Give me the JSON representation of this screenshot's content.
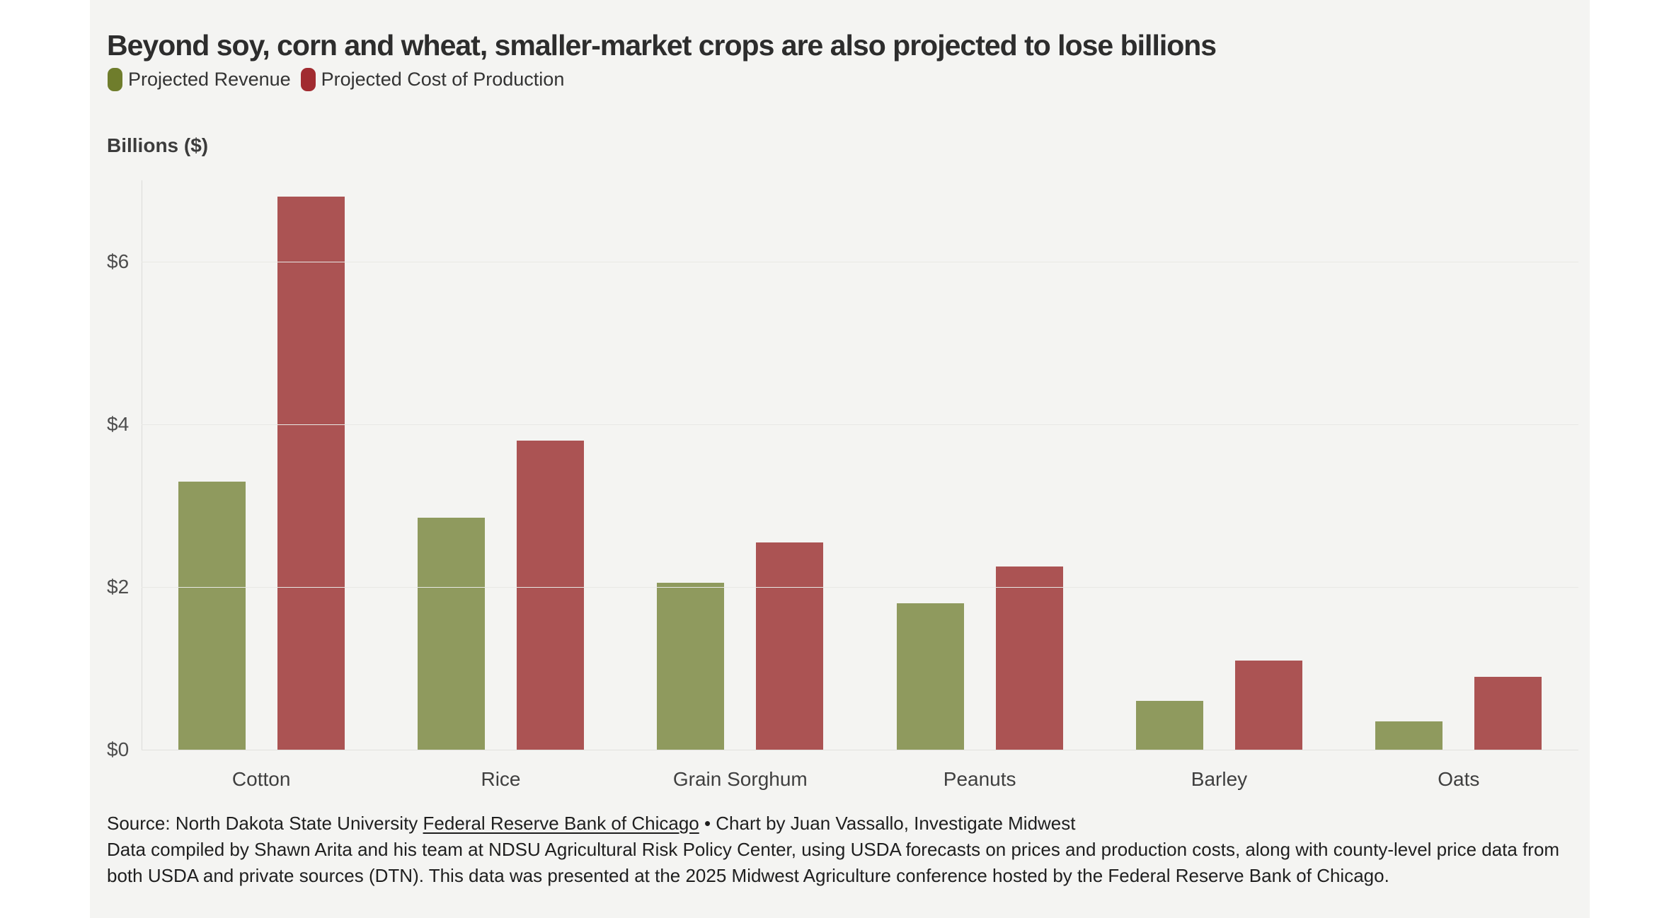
{
  "header": {
    "title": "Beyond soy, corn and wheat, smaller-market crops are also projected to lose billions"
  },
  "legend": {
    "revenue_label": "Projected Revenue",
    "cost_label": "Projected Cost of Production"
  },
  "y_axis_title": "Billions ($)",
  "chart_data": {
    "type": "bar",
    "categories": [
      "Cotton",
      "Rice",
      "Grain Sorghum",
      "Peanuts",
      "Barley",
      "Oats"
    ],
    "series": [
      {
        "name": "Projected Revenue",
        "color": "#8F9A5E",
        "values": [
          3.3,
          2.85,
          2.05,
          1.8,
          0.6,
          0.35
        ]
      },
      {
        "name": "Projected Cost of Production",
        "color": "#AB5353",
        "values": [
          6.8,
          3.8,
          2.55,
          2.25,
          1.1,
          0.9
        ]
      }
    ],
    "title": "Beyond soy, corn and wheat, smaller-market crops are also projected to lose billions",
    "xlabel": "",
    "ylabel": "Billions ($)",
    "ylim": [
      0,
      7
    ],
    "yticks": [
      {
        "value": 0,
        "label": "$0"
      },
      {
        "value": 2,
        "label": "$2"
      },
      {
        "value": 4,
        "label": "$4"
      },
      {
        "value": 6,
        "label": "$6"
      }
    ],
    "grid": true,
    "legend_position": "top"
  },
  "colors": {
    "page_bg": "#ffffff",
    "card_bg": "#f4f4f2",
    "bar_revenue": "#8F9A5E",
    "bar_cost": "#AB5353",
    "legend_revenue_swatch": "#6F7D2C",
    "legend_cost_swatch": "#A12B30"
  },
  "footer": {
    "source_prefix": "Source: North Dakota State University ",
    "source_link": "Federal Reserve Bank of Chicago",
    "source_suffix": " • Chart by Juan Vassallo, Investigate Midwest",
    "notes": "Data compiled by Shawn Arita and his team at NDSU Agricultural Risk Policy Center, using USDA forecasts on prices and production costs, along with county-level price data from both USDA and private sources (DTN). This data was presented at the 2025 Midwest Agriculture conference hosted by the Federal Reserve Bank of Chicago."
  }
}
